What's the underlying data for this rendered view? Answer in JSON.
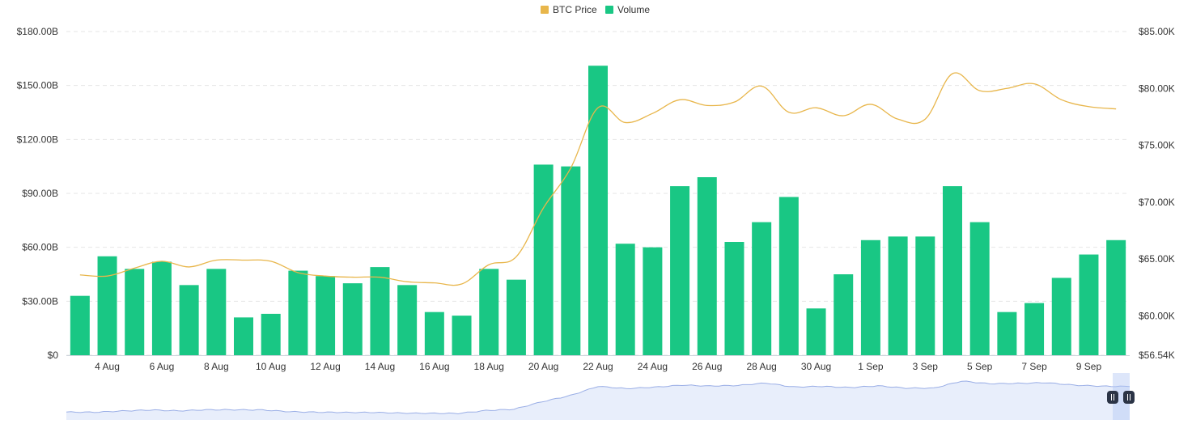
{
  "chart_data": {
    "type": "bar",
    "legend": {
      "placement": "top-center",
      "items": [
        {
          "label": "BTC Price",
          "color": "#e8b64b"
        },
        {
          "label": "Volume",
          "color": "#19c784"
        }
      ]
    },
    "categories": [
      "3 Aug",
      "4 Aug",
      "5 Aug",
      "6 Aug",
      "7 Aug",
      "8 Aug",
      "9 Aug",
      "10 Aug",
      "11 Aug",
      "12 Aug",
      "13 Aug",
      "14 Aug",
      "15 Aug",
      "16 Aug",
      "17 Aug",
      "18 Aug",
      "19 Aug",
      "20 Aug",
      "21 Aug",
      "22 Aug",
      "23 Aug",
      "24 Aug",
      "25 Aug",
      "26 Aug",
      "27 Aug",
      "28 Aug",
      "29 Aug",
      "30 Aug",
      "31 Aug",
      "1 Sep",
      "2 Sep",
      "3 Sep",
      "4 Sep",
      "5 Sep",
      "6 Sep",
      "7 Sep",
      "8 Sep",
      "9 Sep",
      "10 Sep"
    ],
    "x_tick_labels": [
      "4 Aug",
      "6 Aug",
      "8 Aug",
      "10 Aug",
      "12 Aug",
      "14 Aug",
      "16 Aug",
      "18 Aug",
      "20 Aug",
      "22 Aug",
      "24 Aug",
      "26 Aug",
      "28 Aug",
      "30 Aug",
      "1 Sep",
      "3 Sep",
      "5 Sep",
      "7 Sep",
      "9 Sep"
    ],
    "y_left": {
      "min": 0,
      "max": 180,
      "ticks": [
        0,
        30,
        60,
        90,
        120,
        150,
        180
      ],
      "tick_labels": [
        "$0",
        "$30.00B",
        "$60.00B",
        "$90.00B",
        "$120.00B",
        "$150.00B",
        "$180.00B"
      ]
    },
    "y_right": {
      "min": 56.54,
      "max": 85,
      "ticks": [
        56.54,
        60,
        65,
        70,
        75,
        80,
        85
      ],
      "tick_labels": [
        "$56.54K",
        "$60.00K",
        "$65.00K",
        "$70.00K",
        "$75.00K",
        "$80.00K",
        "$85.00K"
      ]
    },
    "grid": true,
    "series": [
      {
        "name": "Volume",
        "axis": "left",
        "kind": "bar",
        "color": "#19c784",
        "values": [
          33,
          55,
          48,
          52,
          39,
          48,
          21,
          23,
          47,
          44,
          40,
          49,
          39,
          24,
          22,
          48,
          42,
          106,
          105,
          161,
          62,
          60,
          94,
          99,
          63,
          74,
          88,
          26,
          45,
          64,
          66,
          66,
          94,
          74,
          24,
          29,
          43,
          56,
          64
        ]
      },
      {
        "name": "BTC Price",
        "axis": "right",
        "kind": "line",
        "color": "#e8b64b",
        "values": [
          63.6,
          63.5,
          64.2,
          64.8,
          64.3,
          64.9,
          64.9,
          64.8,
          63.8,
          63.5,
          63.4,
          63.4,
          63.0,
          62.9,
          62.8,
          64.5,
          65.2,
          69.5,
          73.0,
          78.3,
          77.0,
          77.8,
          79.0,
          78.5,
          78.8,
          80.2,
          77.9,
          78.3,
          77.6,
          78.6,
          77.3,
          77.3,
          81.3,
          79.8,
          80.0,
          80.4,
          79.0,
          78.4,
          78.2
        ]
      }
    ],
    "navigator": {
      "color": "#9aaee6",
      "fill": "#e8eefb"
    }
  }
}
